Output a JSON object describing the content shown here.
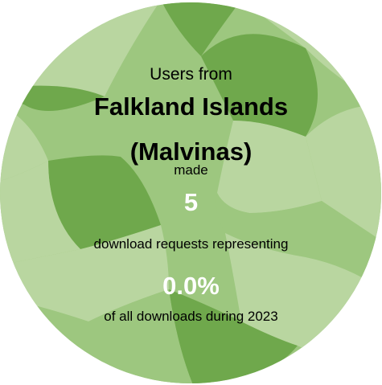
{
  "bubble": {
    "line_users_from": "Users from",
    "country_line1": "Falkland Islands",
    "country_line2": "(Malvinas)",
    "line_made": "made",
    "count": "5",
    "line_requests": "download requests representing",
    "percent": "0.0%",
    "line_total": "of all downloads during 2023"
  },
  "colors": {
    "light": "#b9d6a0",
    "mid": "#9dc77f",
    "dark": "#6fa84c"
  }
}
